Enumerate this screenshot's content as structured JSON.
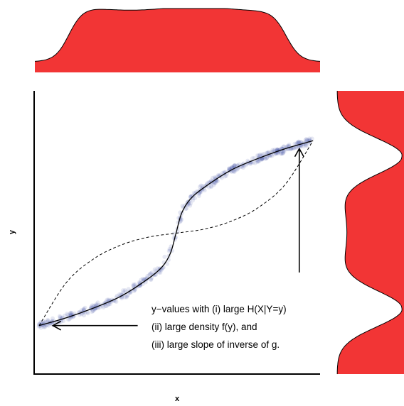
{
  "chart_data": {
    "type": "scatter",
    "title": "",
    "xlabel": "x",
    "ylabel": "y",
    "x_range": [
      0,
      1
    ],
    "y_range": [
      0,
      1
    ],
    "grid": false,
    "legend": "none",
    "colors": {
      "points": "#3a4aa0",
      "curve": "#000000",
      "marginal_fill": "#f23535",
      "marginal_line": "#000000"
    },
    "curve_g": {
      "description_free": true,
      "x": [
        0.0,
        0.1,
        0.2,
        0.3,
        0.4,
        0.45,
        0.48,
        0.5,
        0.52,
        0.55,
        0.6,
        0.7,
        0.8,
        0.9,
        1.0
      ],
      "y": [
        0.03,
        0.07,
        0.12,
        0.18,
        0.27,
        0.33,
        0.4,
        0.5,
        0.6,
        0.67,
        0.73,
        0.82,
        0.88,
        0.93,
        0.97
      ]
    },
    "curve_dashed": {
      "x": [
        0.0,
        0.1,
        0.2,
        0.3,
        0.4,
        0.5,
        0.6,
        0.7,
        0.8,
        0.9,
        1.0
      ],
      "y": [
        0.03,
        0.25,
        0.37,
        0.44,
        0.48,
        0.5,
        0.52,
        0.56,
        0.63,
        0.75,
        0.97
      ]
    },
    "annotation_lines": [
      "y−values with (i) large H(X|Y=y)",
      "(ii) large density f(y), and",
      "(iii) large slope of inverse of g."
    ],
    "arrows": [
      {
        "from": [
          0.36,
          0.03
        ],
        "to": [
          0.05,
          0.03
        ]
      },
      {
        "from": [
          0.95,
          0.3
        ],
        "to": [
          0.95,
          0.93
        ]
      }
    ]
  }
}
